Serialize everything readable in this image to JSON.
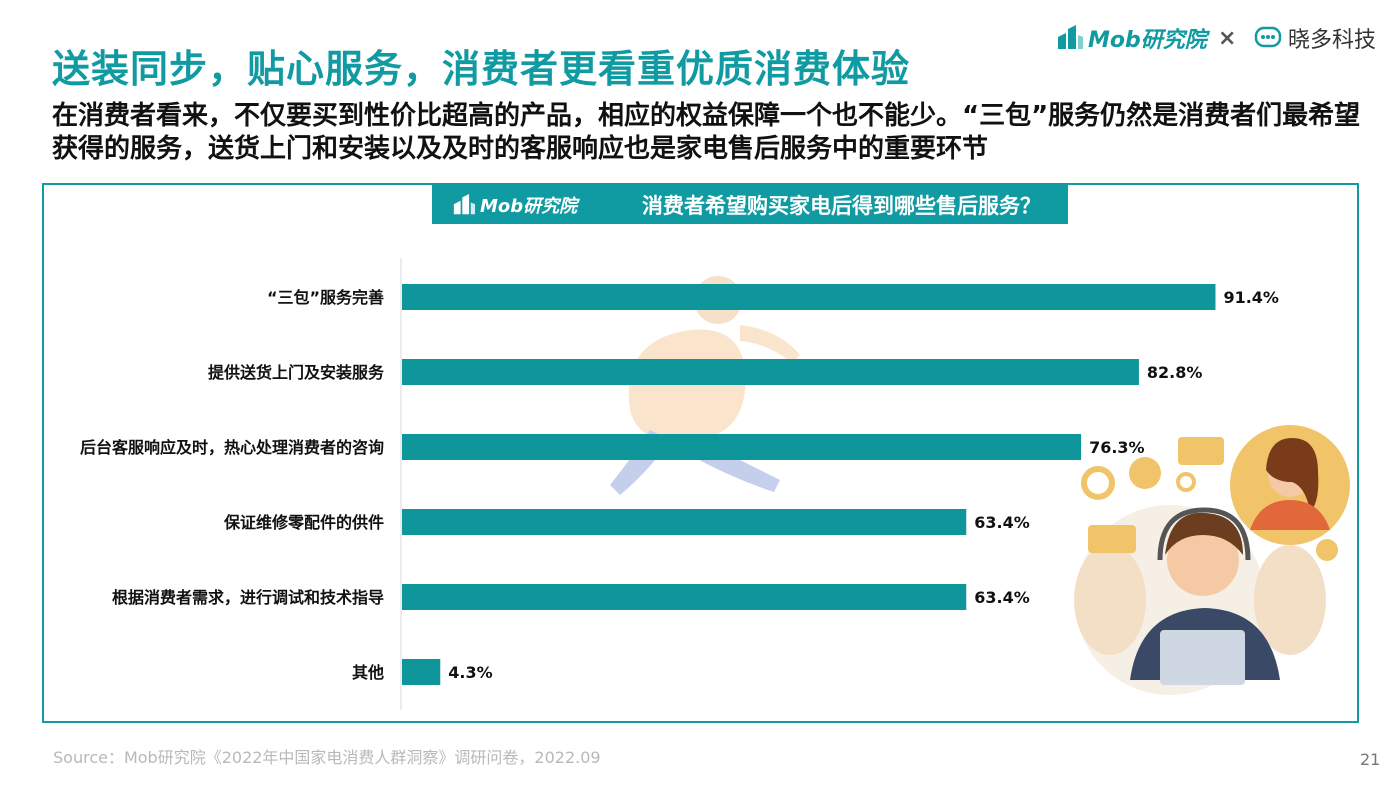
{
  "slide": {
    "title": "送装同步，贴心服务，消费者更看重优质消费体验",
    "subtitle": "在消费者看来，不仅要买到性价比超高的产品，相应的权益保障一个也不能少。“三包”服务仍然是消费者们最希望获得的服务，送货上门和安装以及及时的客服响应也是家电售后服务中的重要环节",
    "source": "Source：Mob研究院《2022年中国家电消费人群洞察》调研问卷，2022.09",
    "page_number": "21"
  },
  "brand": {
    "mob": "Mob研究院",
    "separator": "×",
    "partner": "晓多科技"
  },
  "colors": {
    "accent": "#109aa1",
    "bar": "#0e969b"
  },
  "chart_data": {
    "type": "bar",
    "orientation": "horizontal",
    "title": "消费者希望购买家电后得到哪些售后服务？",
    "categories": [
      "“三包”服务完善",
      "提供送货上门及安装服务",
      "后台客服响应及时，热心处理消费者的咨询",
      "保证维修零配件的供件",
      "根据消费者需求，进行调试和技术指导",
      "其他"
    ],
    "values": [
      91.4,
      82.8,
      76.3,
      63.4,
      63.4,
      4.3
    ],
    "value_labels": [
      "91.4%",
      "82.8%",
      "76.3%",
      "63.4%",
      "63.4%",
      "4.3%"
    ],
    "unit": "%",
    "xlim": [
      0,
      100
    ],
    "grid": false,
    "legend": "none"
  }
}
